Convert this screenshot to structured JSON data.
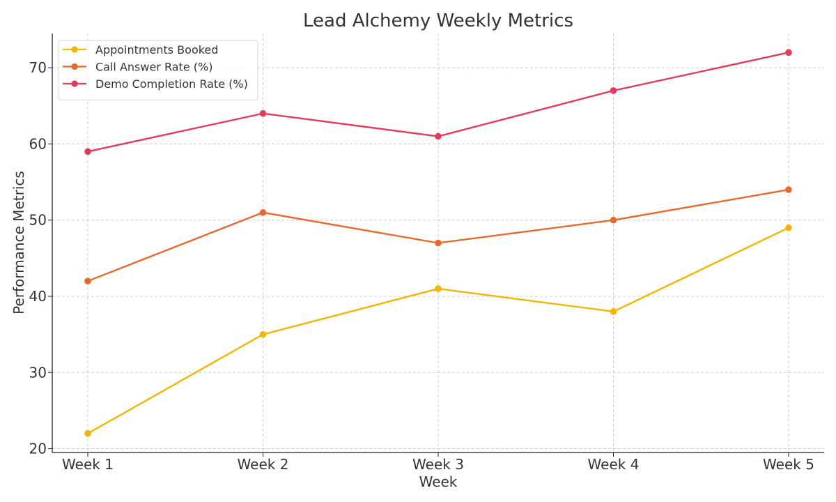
{
  "chart_data": {
    "type": "line",
    "title": "Lead Alchemy Weekly Metrics",
    "xlabel": "Week",
    "ylabel": "Performance Metrics",
    "categories": [
      "Week 1",
      "Week 2",
      "Week 3",
      "Week 4",
      "Week 5"
    ],
    "ylim": [
      19.5,
      74.5
    ],
    "yticks": [
      20,
      30,
      40,
      50,
      60,
      70
    ],
    "grid": true,
    "legend_position": "top-left",
    "series": [
      {
        "name": "Appointments Booked",
        "color": "#f4b400",
        "values": [
          22,
          35,
          41,
          38,
          49
        ]
      },
      {
        "name": "Call Answer Rate (%)",
        "color": "#e8692a",
        "values": [
          42,
          51,
          47,
          50,
          54
        ]
      },
      {
        "name": "Demo Completion Rate (%)",
        "color": "#e63a5a",
        "values": [
          59,
          64,
          61,
          67,
          72
        ]
      }
    ]
  }
}
